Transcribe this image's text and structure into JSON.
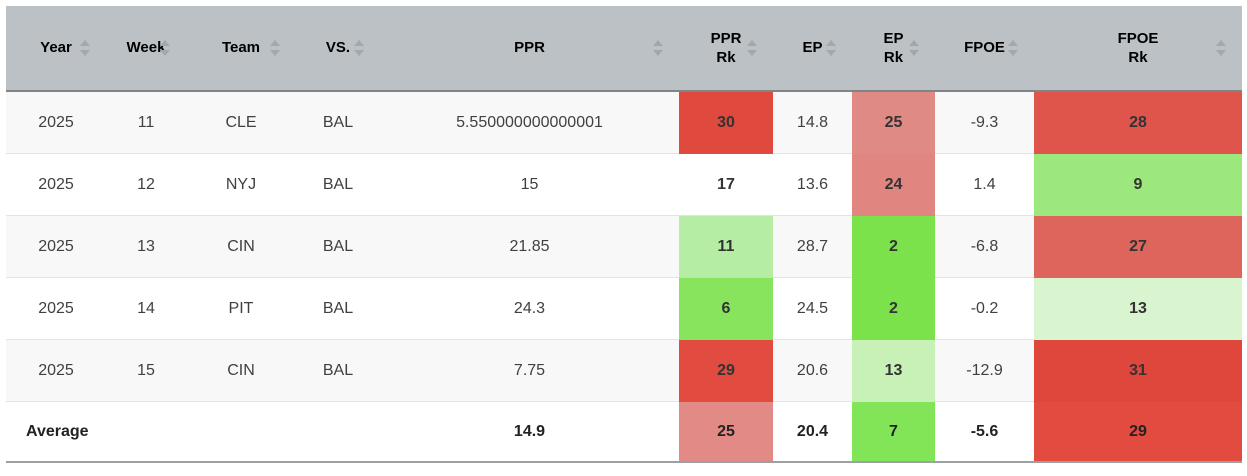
{
  "table": {
    "columns": [
      {
        "key": "year",
        "label": "Year"
      },
      {
        "key": "week",
        "label": "Week"
      },
      {
        "key": "team",
        "label": "Team"
      },
      {
        "key": "vs",
        "label": "VS."
      },
      {
        "key": "ppr",
        "label": "PPR"
      },
      {
        "key": "ppr_rk",
        "label": "PPR\nRk"
      },
      {
        "key": "ep",
        "label": "EP"
      },
      {
        "key": "ep_rk",
        "label": "EP\nRk"
      },
      {
        "key": "fpoe",
        "label": "FPOE"
      },
      {
        "key": "fpoe_rk",
        "label": "FPOE\nRk"
      }
    ],
    "rows": [
      {
        "year": "2025",
        "week": "11",
        "team": "CLE",
        "vs": "BAL",
        "ppr": "5.550000000000001",
        "ppr_rk": {
          "value": "30",
          "bg": "#e04a3e"
        },
        "ep": "14.8",
        "ep_rk": {
          "value": "25",
          "bg": "#e08a85"
        },
        "fpoe": "-9.3",
        "fpoe_rk": {
          "value": "28",
          "bg": "#e0554b"
        }
      },
      {
        "year": "2025",
        "week": "12",
        "team": "NYJ",
        "vs": "BAL",
        "ppr": "15",
        "ppr_rk": {
          "value": "17",
          "bg": null
        },
        "ep": "13.6",
        "ep_rk": {
          "value": "24",
          "bg": "#e08580"
        },
        "fpoe": "1.4",
        "fpoe_rk": {
          "value": "9",
          "bg": "#9ce87c"
        }
      },
      {
        "year": "2025",
        "week": "13",
        "team": "CIN",
        "vs": "BAL",
        "ppr": "21.85",
        "ppr_rk": {
          "value": "11",
          "bg": "#b5eda4"
        },
        "ep": "28.7",
        "ep_rk": {
          "value": "2",
          "bg": "#7ce24b"
        },
        "fpoe": "-6.8",
        "fpoe_rk": {
          "value": "27",
          "bg": "#de655c"
        }
      },
      {
        "year": "2025",
        "week": "14",
        "team": "PIT",
        "vs": "BAL",
        "ppr": "24.3",
        "ppr_rk": {
          "value": "6",
          "bg": "#88e45c"
        },
        "ep": "24.5",
        "ep_rk": {
          "value": "2",
          "bg": "#7ce24b"
        },
        "fpoe": "-0.2",
        "fpoe_rk": {
          "value": "13",
          "bg": "#d9f5cf"
        }
      },
      {
        "year": "2025",
        "week": "15",
        "team": "CIN",
        "vs": "BAL",
        "ppr": "7.75",
        "ppr_rk": {
          "value": "29",
          "bg": "#e14b40"
        },
        "ep": "20.6",
        "ep_rk": {
          "value": "13",
          "bg": "#c7f1b6"
        },
        "fpoe": "-12.9",
        "fpoe_rk": {
          "value": "31",
          "bg": "#e0473c"
        }
      }
    ],
    "average": {
      "year": "Average",
      "week": "",
      "team": "",
      "vs": "",
      "ppr": "14.9",
      "ppr_rk": {
        "value": "25",
        "bg": "#e28b86"
      },
      "ep": "20.4",
      "ep_rk": {
        "value": "7",
        "bg": "#82e557"
      },
      "fpoe": "-5.6",
      "fpoe_rk": {
        "value": "29",
        "bg": "#e14b40"
      }
    }
  },
  "colors": {
    "header_bg": "#bcc1c5",
    "header_border": "#7f8487",
    "row_alt_bg": "#f8f8f8",
    "row_separator": "#e4e4e4",
    "table_bottom_border": "#9ba0a4",
    "sort_arrow": "#a2a8ac",
    "rank_good": "#7ce24b",
    "rank_bad": "#e0473c"
  }
}
